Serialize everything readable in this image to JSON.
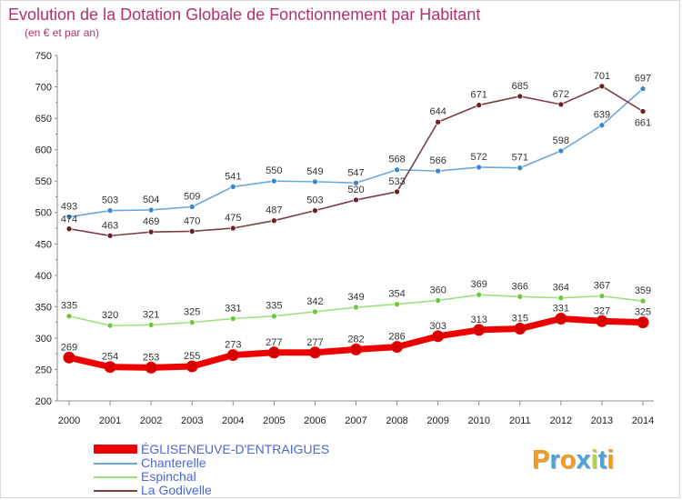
{
  "page": {
    "title": "Evolution de la Dotation Globale de Fonctionnement par Habitant",
    "subtitle": "(en € et par an)"
  },
  "chart_data": {
    "type": "line",
    "title": "Evolution de la Dotation Globale de Fonctionnement par Habitant",
    "subtitle": "(en € et par an)",
    "xlabel": "",
    "ylabel": "",
    "x": [
      "2000",
      "2001",
      "2002",
      "2003",
      "2004",
      "2005",
      "2006",
      "2007",
      "2008",
      "2009",
      "2010",
      "2011",
      "2012",
      "2013",
      "2014"
    ],
    "ylim": [
      200,
      750
    ],
    "yticks": [
      "200",
      "250",
      "300",
      "350",
      "400",
      "450",
      "500",
      "550",
      "600",
      "650",
      "700",
      "750"
    ],
    "grid": false,
    "legend_placement": "bottom-left",
    "series": [
      {
        "name": "ÉGLISENEUVE-D'ENTRAIGUES",
        "values": [
          269,
          254,
          253,
          255,
          273,
          277,
          277,
          282,
          286,
          303,
          313,
          315,
          331,
          327,
          325
        ],
        "labels": [
          "269",
          "254",
          "253",
          "255",
          "273",
          "277",
          "277",
          "282",
          "286",
          "303",
          "313",
          "315",
          "331",
          "327",
          "325"
        ],
        "color": "#ee0000",
        "marker": "#d60000",
        "style": "thick"
      },
      {
        "name": "Chanterelle",
        "values": [
          493,
          503,
          504,
          509,
          541,
          550,
          549,
          547,
          568,
          566,
          572,
          571,
          598,
          639,
          697
        ],
        "labels": [
          "493",
          "503",
          "504",
          "509",
          "541",
          "550",
          "549",
          "547",
          "568",
          "566",
          "572",
          "571",
          "598",
          "639",
          "697"
        ],
        "color": "#6ea6d6",
        "marker": "#3a86cf",
        "style": "thin"
      },
      {
        "name": "Espinchal",
        "values": [
          335,
          320,
          321,
          325,
          331,
          335,
          342,
          349,
          354,
          360,
          369,
          366,
          364,
          367,
          359
        ],
        "labels": [
          "335",
          "320",
          "321",
          "325",
          "331",
          "335",
          "342",
          "349",
          "354",
          "360",
          "369",
          "366",
          "364",
          "367",
          "359"
        ],
        "color": "#9fe07e",
        "marker": "#69c83b",
        "style": "thin"
      },
      {
        "name": "La Godivelle",
        "values": [
          474,
          463,
          469,
          470,
          475,
          487,
          503,
          520,
          533,
          644,
          671,
          685,
          672,
          701,
          661
        ],
        "labels": [
          "474",
          "463",
          "469",
          "470",
          "475",
          "487",
          "503",
          "520",
          "533",
          "644",
          "671",
          "685",
          "672",
          "701",
          "661"
        ],
        "color": "#7b3f45",
        "marker": "#6c1f25",
        "style": "thin"
      }
    ]
  },
  "legend": {
    "items": [
      {
        "label": "ÉGLISENEUVE-D'ENTRAIGUES",
        "color": "#ee0000"
      },
      {
        "label": "Chanterelle",
        "color": "#6ea6d6"
      },
      {
        "label": "Espinchal",
        "color": "#9fe07e"
      },
      {
        "label": "La Godivelle",
        "color": "#7b3f45"
      }
    ]
  },
  "logo": {
    "text": "Proxiti",
    "colors": [
      "#f19b1f",
      "#4ba3da",
      "#f19b1f",
      "#4ba3da",
      "#b5d24b",
      "#4ba3da",
      "#f19b1f"
    ]
  }
}
